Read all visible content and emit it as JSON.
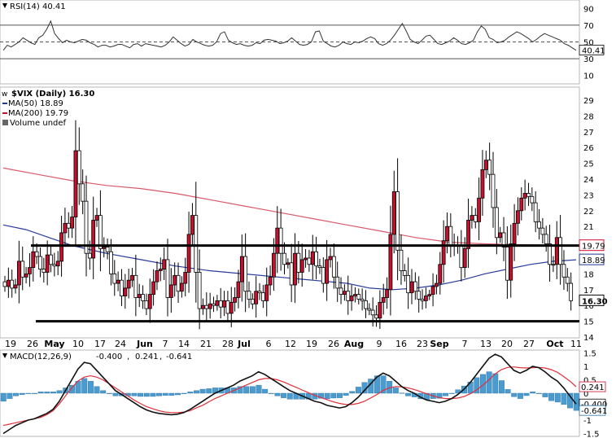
{
  "chart_data": {
    "type": "candlestick",
    "symbol": "$VIX (Daily) 16.30",
    "price_axis": {
      "ticks": [
        14,
        15,
        16,
        17,
        18,
        19,
        20,
        21,
        22,
        23,
        24,
        25,
        26,
        27,
        28,
        29
      ]
    },
    "x_tick_labels": [
      {
        "label": "19",
        "bold": false
      },
      {
        "label": "26",
        "bold": false
      },
      {
        "label": "May",
        "bold": true
      },
      {
        "label": "10",
        "bold": false
      },
      {
        "label": "17",
        "bold": false
      },
      {
        "label": "24",
        "bold": false
      },
      {
        "label": "Jun",
        "bold": true
      },
      {
        "label": "7",
        "bold": false
      },
      {
        "label": "14",
        "bold": false
      },
      {
        "label": "21",
        "bold": false
      },
      {
        "label": "28",
        "bold": false
      },
      {
        "label": "Jul",
        "bold": true
      },
      {
        "label": "6",
        "bold": false
      },
      {
        "label": "12",
        "bold": false
      },
      {
        "label": "19",
        "bold": false
      },
      {
        "label": "26",
        "bold": false
      },
      {
        "label": "Aug",
        "bold": true
      },
      {
        "label": "9",
        "bold": false
      },
      {
        "label": "16",
        "bold": false
      },
      {
        "label": "23",
        "bold": false
      },
      {
        "label": "Sep",
        "bold": true
      },
      {
        "label": "7",
        "bold": false
      },
      {
        "label": "13",
        "bold": false
      },
      {
        "label": "20",
        "bold": false
      },
      {
        "label": "27",
        "bold": false
      },
      {
        "label": "Oct",
        "bold": true
      },
      {
        "label": "11",
        "bold": false
      }
    ],
    "close": [
      17.2,
      17.6,
      17.1,
      17.3,
      18.8,
      17.8,
      18.0,
      18.4,
      19.4,
      19.1,
      18.3,
      18.1,
      19.2,
      18.6,
      18.5,
      18.8,
      20.6,
      21.2,
      20.9,
      21.6,
      25.8,
      23.7,
      22.6,
      19.3,
      19.0,
      21.4,
      21.7,
      19.6,
      19.7,
      19.4,
      18.0,
      17.4,
      17.6,
      16.6,
      17.1,
      17.6,
      17.9,
      16.5,
      16.7,
      16.3,
      15.8,
      16.7,
      17.5,
      18.2,
      18.3,
      18.9,
      16.5,
      17.3,
      17.9,
      16.9,
      17.4,
      18.1,
      20.5,
      21.7,
      18.1,
      15.8,
      16.0,
      15.8,
      16.1,
      16.0,
      16.3,
      15.9,
      16.3,
      15.5,
      16.2,
      16.5,
      17.5,
      19.1,
      16.9,
      16.4,
      16.1,
      16.9,
      16.8,
      16.3,
      17.3,
      17.8,
      19.3,
      20.9,
      19.3,
      18.6,
      18.7,
      17.3,
      19.3,
      18.1,
      18.9,
      19.0,
      18.6,
      19.4,
      18.5,
      18.4,
      17.4,
      18.9,
      19.1,
      17.8,
      17.1,
      16.7,
      16.9,
      16.3,
      16.6,
      16.7,
      16.4,
      16.3,
      15.8,
      15.7,
      15.4,
      15.2,
      16.2,
      16.5,
      17.0,
      20.5,
      23.2,
      19.5,
      18.2,
      17.9,
      16.8,
      17.5,
      16.9,
      16.4,
      16.3,
      16.6,
      16.7,
      17.2,
      17.4,
      18.6,
      20.1,
      21.0,
      19.8,
      19.8,
      19.8,
      18.4,
      19.6,
      21.4,
      21.7,
      21.3,
      22.8,
      24.6,
      25.2,
      24.3,
      22.2,
      20.3,
      20.6,
      19.7,
      17.6,
      19.9,
      21.2,
      22.0,
      22.8,
      23.1,
      22.9,
      22.5,
      21.3,
      20.9,
      20.5,
      19.9,
      18.6,
      18.6,
      20.3,
      18.6,
      17.8,
      17.4,
      16.3
    ],
    "ma50": {
      "label": "MA(50) 18.89",
      "values": [
        [
          0,
          21.1
        ],
        [
          0.04,
          20.8
        ],
        [
          0.08,
          20.3
        ],
        [
          0.12,
          19.8
        ],
        [
          0.18,
          19.3
        ],
        [
          0.24,
          18.9
        ],
        [
          0.3,
          18.5
        ],
        [
          0.36,
          18.2
        ],
        [
          0.42,
          18.0
        ],
        [
          0.48,
          17.8
        ],
        [
          0.54,
          17.6
        ],
        [
          0.6,
          17.4
        ],
        [
          0.64,
          17.1
        ],
        [
          0.68,
          17.0
        ],
        [
          0.72,
          17.1
        ],
        [
          0.76,
          17.3
        ],
        [
          0.8,
          17.6
        ],
        [
          0.84,
          18.0
        ],
        [
          0.88,
          18.3
        ],
        [
          0.92,
          18.6
        ],
        [
          0.96,
          18.8
        ],
        [
          1,
          18.89
        ]
      ]
    },
    "ma200": {
      "label": "MA(200) 19.79",
      "values": [
        [
          0,
          24.7
        ],
        [
          0.06,
          24.3
        ],
        [
          0.12,
          23.9
        ],
        [
          0.18,
          23.6
        ],
        [
          0.24,
          23.4
        ],
        [
          0.3,
          23.1
        ],
        [
          0.36,
          22.7
        ],
        [
          0.42,
          22.3
        ],
        [
          0.48,
          21.9
        ],
        [
          0.54,
          21.5
        ],
        [
          0.6,
          21.1
        ],
        [
          0.66,
          20.7
        ],
        [
          0.72,
          20.3
        ],
        [
          0.78,
          20.0
        ],
        [
          0.84,
          19.9
        ],
        [
          0.9,
          19.85
        ],
        [
          1,
          19.79
        ]
      ]
    },
    "volume_label": "Volume undef",
    "horizontal_lines": [
      19.79,
      15.0
    ],
    "price_tags": [
      {
        "text": "19.79",
        "color": "#c8102e",
        "value": 19.79
      },
      {
        "text": "18.89",
        "color": "#1f3a93",
        "value": 18.89
      },
      {
        "text": "16.30",
        "color": "#000000",
        "value": 16.3
      }
    ],
    "rsi": {
      "label": "RSI(14) 40.41",
      "ticks": [
        10,
        30,
        50,
        70,
        90
      ],
      "bands": [
        30,
        50,
        70
      ],
      "current_tag": "40.41",
      "values": [
        40,
        46,
        44,
        47,
        50,
        55,
        52,
        49,
        47,
        55,
        58,
        65,
        75,
        60,
        54,
        49,
        52,
        50,
        49,
        51,
        53,
        52,
        49,
        47,
        44,
        46,
        46,
        44,
        45,
        47,
        47,
        45,
        43,
        47,
        48,
        45,
        48,
        47,
        46,
        45,
        44,
        46,
        50,
        56,
        52,
        48,
        45,
        47,
        53,
        50,
        48,
        46,
        45,
        46,
        50,
        60,
        62,
        52,
        49,
        47,
        48,
        46,
        45,
        46,
        49,
        48,
        52,
        53,
        52,
        51,
        48,
        49,
        51,
        55,
        51,
        47,
        46,
        47,
        50,
        62,
        63,
        51,
        48,
        45,
        44,
        46,
        50,
        48,
        47,
        50,
        49,
        51,
        54,
        56,
        54,
        48,
        46,
        48,
        52,
        58,
        65,
        72,
        63,
        53,
        50,
        48,
        52,
        57,
        58,
        53,
        48,
        47,
        49,
        51,
        55,
        52,
        48,
        47,
        49,
        52,
        62,
        69,
        65,
        55,
        53,
        49,
        50,
        52,
        56,
        59,
        62,
        60,
        57,
        54,
        50,
        53,
        57,
        60,
        58,
        56,
        54,
        52,
        48,
        46,
        43,
        40
      ]
    },
    "macd": {
      "label": "MACD(12,26,9)",
      "values_label": "-0.400",
      "signal_label": "0.241",
      "hist_label": "-0.641",
      "ticks": [
        -1.5,
        -1.0,
        -0.5,
        0,
        0.5,
        1.0,
        1.5
      ],
      "tags": [
        {
          "text": "0.241",
          "value": 0.241
        },
        {
          "text": "-0.400",
          "value": -0.4
        },
        {
          "text": "-0.641",
          "value": -0.641
        }
      ],
      "macd": [
        -1.5,
        -1.35,
        -1.2,
        -1.1,
        -1.0,
        -0.95,
        -0.85,
        -0.75,
        -0.6,
        -0.3,
        0.1,
        0.5,
        0.9,
        1.15,
        1.1,
        0.85,
        0.6,
        0.35,
        0.1,
        -0.05,
        -0.2,
        -0.35,
        -0.5,
        -0.62,
        -0.7,
        -0.75,
        -0.78,
        -0.8,
        -0.78,
        -0.72,
        -0.6,
        -0.45,
        -0.3,
        -0.15,
        0.0,
        0.1,
        0.2,
        0.3,
        0.45,
        0.55,
        0.65,
        0.8,
        0.7,
        0.55,
        0.4,
        0.25,
        0.1,
        0.0,
        -0.1,
        -0.2,
        -0.3,
        -0.35,
        -0.45,
        -0.5,
        -0.55,
        -0.5,
        -0.35,
        -0.15,
        0.1,
        0.35,
        0.6,
        0.75,
        0.65,
        0.45,
        0.25,
        0.1,
        0.0,
        -0.15,
        -0.25,
        -0.3,
        -0.35,
        -0.3,
        -0.2,
        -0.05,
        0.15,
        0.4,
        0.7,
        1.0,
        1.3,
        1.45,
        1.35,
        1.1,
        0.85,
        0.75,
        0.85,
        1.0,
        0.95,
        0.8,
        0.6,
        0.45,
        0.2,
        -0.1,
        -0.4
      ],
      "signal": [
        -1.2,
        -1.15,
        -1.1,
        -1.05,
        -1.0,
        -0.95,
        -0.9,
        -0.8,
        -0.65,
        -0.4,
        -0.1,
        0.2,
        0.45,
        0.6,
        0.65,
        0.6,
        0.5,
        0.35,
        0.2,
        0.05,
        -0.1,
        -0.25,
        -0.38,
        -0.5,
        -0.58,
        -0.65,
        -0.7,
        -0.72,
        -0.72,
        -0.7,
        -0.65,
        -0.55,
        -0.45,
        -0.32,
        -0.2,
        -0.1,
        0.0,
        0.1,
        0.2,
        0.3,
        0.4,
        0.5,
        0.55,
        0.55,
        0.5,
        0.42,
        0.32,
        0.22,
        0.12,
        0.02,
        -0.08,
        -0.16,
        -0.24,
        -0.32,
        -0.38,
        -0.42,
        -0.42,
        -0.38,
        -0.3,
        -0.18,
        -0.05,
        0.1,
        0.2,
        0.25,
        0.24,
        0.2,
        0.14,
        0.06,
        -0.02,
        -0.1,
        -0.16,
        -0.2,
        -0.2,
        -0.18,
        -0.12,
        -0.02,
        0.12,
        0.3,
        0.5,
        0.72,
        0.88,
        0.96,
        0.98,
        0.95,
        0.94,
        0.95,
        0.96,
        0.94,
        0.88,
        0.78,
        0.62,
        0.45,
        0.241
      ]
    }
  }
}
